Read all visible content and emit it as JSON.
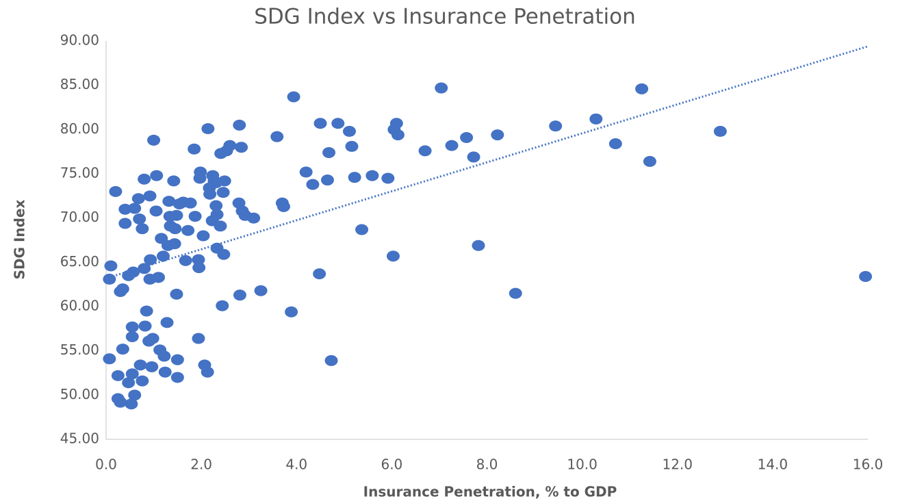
{
  "chart_data": {
    "type": "scatter",
    "title": "SDG Index vs Insurance Penetration",
    "x_label": "Insurance Penetration, % to GDP",
    "y_label": "SDG Index",
    "color": "#4472c4",
    "xlim": [
      0,
      16
    ],
    "ylim": [
      45,
      90
    ],
    "xticks": [
      {
        "value": 0,
        "label": "0.0"
      },
      {
        "value": 2,
        "label": "2.0"
      },
      {
        "value": 4,
        "label": "4.0"
      },
      {
        "value": 6,
        "label": "6.0"
      },
      {
        "value": 8,
        "label": "8.0"
      },
      {
        "value": 10,
        "label": "10.0"
      },
      {
        "value": 12,
        "label": "12.0"
      },
      {
        "value": 14,
        "label": "14.0"
      },
      {
        "value": 16,
        "label": "16.0"
      }
    ],
    "yticks": [
      {
        "value": 45,
        "label": "45.00"
      },
      {
        "value": 50,
        "label": "50.00"
      },
      {
        "value": 55,
        "label": "55.00"
      },
      {
        "value": 60,
        "label": "60.00"
      },
      {
        "value": 65,
        "label": "65.00"
      },
      {
        "value": 70,
        "label": "70.00"
      },
      {
        "value": 75,
        "label": "75.00"
      },
      {
        "value": 80,
        "label": "80.00"
      },
      {
        "value": 85,
        "label": "85.00"
      },
      {
        "value": 90,
        "label": "90.00"
      }
    ],
    "x": [
      0.07,
      0.1,
      0.07,
      0.2,
      0.25,
      0.25,
      0.3,
      0.3,
      0.35,
      0.35,
      0.4,
      0.4,
      0.47,
      0.47,
      0.53,
      0.57,
      0.6,
      0.55,
      0.55,
      0.55,
      0.6,
      0.68,
      0.7,
      0.72,
      0.76,
      0.76,
      0.8,
      0.8,
      0.82,
      0.85,
      0.9,
      0.92,
      0.93,
      0.92,
      0.96,
      0.98,
      1.0,
      1.05,
      1.06,
      1.1,
      1.13,
      1.16,
      1.2,
      1.22,
      1.24,
      1.28,
      1.3,
      1.32,
      1.34,
      1.35,
      1.42,
      1.44,
      1.45,
      1.48,
      1.48,
      1.5,
      1.5,
      1.54,
      1.62,
      1.67,
      1.72,
      1.77,
      1.85,
      1.87,
      1.94,
      1.94,
      1.95,
      1.97,
      1.98,
      2.04,
      2.07,
      2.13,
      2.14,
      2.17,
      2.18,
      2.23,
      2.24,
      2.27,
      2.31,
      2.31,
      2.33,
      2.33,
      2.4,
      2.41,
      2.44,
      2.46,
      2.47,
      2.49,
      2.53,
      2.6,
      2.79,
      2.8,
      2.81,
      2.84,
      2.86,
      2.92,
      3.1,
      3.25,
      3.59,
      3.7,
      3.73,
      3.89,
      3.94,
      4.2,
      4.34,
      4.48,
      4.5,
      4.65,
      4.68,
      4.73,
      4.87,
      5.11,
      5.16,
      5.22,
      5.37,
      5.59,
      5.92,
      6.03,
      6.05,
      6.1,
      6.13,
      6.7,
      7.04,
      7.26,
      7.57,
      7.72,
      7.82,
      8.22,
      8.6,
      9.44,
      10.29,
      10.7,
      11.25,
      11.42,
      12.9,
      15.95
    ],
    "values": [
      54.1,
      64.6,
      63.1,
      73.0,
      52.2,
      49.6,
      49.2,
      61.7,
      62.0,
      55.2,
      71.0,
      69.4,
      63.5,
      51.4,
      49.0,
      63.9,
      71.1,
      57.7,
      56.6,
      52.4,
      50.0,
      72.2,
      69.9,
      53.4,
      68.8,
      51.6,
      74.4,
      64.3,
      57.8,
      59.5,
      56.1,
      72.5,
      65.3,
      63.1,
      53.2,
      56.4,
      78.8,
      70.8,
      74.8,
      63.3,
      55.1,
      67.7,
      65.7,
      54.4,
      52.6,
      58.2,
      66.9,
      71.9,
      70.2,
      69.1,
      74.2,
      67.1,
      68.8,
      61.4,
      70.3,
      54.0,
      52.0,
      71.6,
      71.8,
      65.2,
      68.6,
      71.7,
      77.8,
      70.2,
      65.3,
      56.4,
      64.4,
      74.5,
      75.2,
      68.0,
      53.4,
      52.6,
      80.1,
      73.4,
      72.7,
      69.7,
      74.8,
      74.2,
      74.0,
      71.4,
      70.4,
      66.6,
      69.1,
      77.3,
      60.1,
      72.9,
      65.9,
      74.2,
      77.6,
      78.2,
      71.7,
      80.5,
      61.3,
      78.0,
      70.8,
      70.3,
      70.0,
      61.8,
      79.2,
      71.7,
      71.3,
      59.4,
      83.7,
      75.2,
      73.8,
      63.7,
      80.7,
      74.3,
      77.4,
      53.9,
      80.7,
      79.8,
      78.1,
      74.6,
      68.7,
      74.8,
      74.5,
      65.7,
      80.0,
      80.7,
      79.4,
      77.6,
      84.7,
      78.2,
      79.1,
      76.9,
      66.9,
      79.4,
      61.5,
      80.4,
      81.2,
      78.4,
      84.6,
      76.4,
      79.8,
      63.4
    ],
    "trendline": {
      "x": [
        0,
        16
      ],
      "values": [
        63.2,
        89.4
      ]
    }
  }
}
